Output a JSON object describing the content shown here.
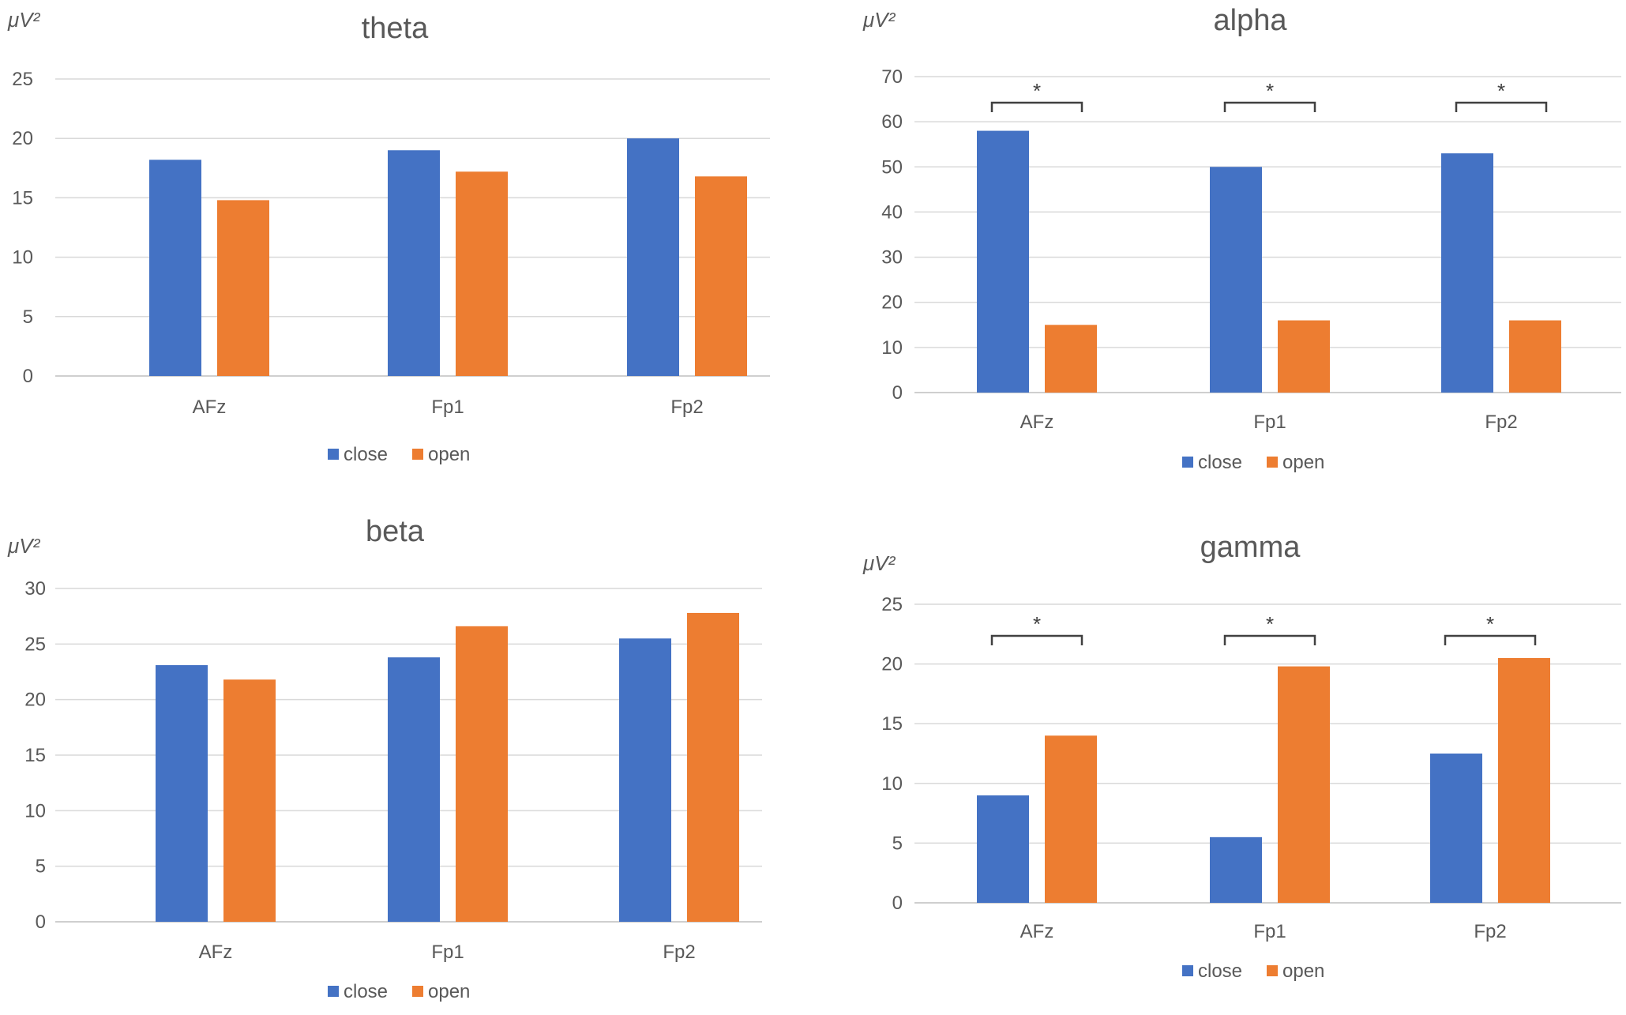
{
  "chart_data": [
    {
      "type": "bar",
      "title": "theta",
      "ylabel": "μV²",
      "ylim": [
        0,
        25
      ],
      "yticks": [
        "0",
        "5",
        "10",
        "15",
        "20",
        "25"
      ],
      "categories": [
        "AFz",
        "Fp1",
        "Fp2"
      ],
      "series": [
        {
          "name": "close",
          "values": [
            18.2,
            19.0,
            20.0
          ]
        },
        {
          "name": "open",
          "values": [
            14.8,
            17.2,
            16.8
          ]
        }
      ],
      "significance": [],
      "legend": "bottom",
      "grid": true
    },
    {
      "type": "bar",
      "title": "alpha",
      "ylabel": "μV²",
      "ylim": [
        0,
        70
      ],
      "yticks": [
        "0",
        "10",
        "20",
        "30",
        "40",
        "50",
        "60",
        "70"
      ],
      "categories": [
        "AFz",
        "Fp1",
        "Fp2"
      ],
      "series": [
        {
          "name": "close",
          "values": [
            58,
            50,
            53
          ]
        },
        {
          "name": "open",
          "values": [
            15,
            16,
            16
          ]
        }
      ],
      "significance": [
        "*",
        "*",
        "*"
      ],
      "legend": "bottom",
      "grid": true
    },
    {
      "type": "bar",
      "title": "beta",
      "ylabel": "μV²",
      "ylim": [
        0,
        30
      ],
      "yticks": [
        "0",
        "5",
        "10",
        "15",
        "20",
        "25",
        "30"
      ],
      "categories": [
        "AFz",
        "Fp1",
        "Fp2"
      ],
      "series": [
        {
          "name": "close",
          "values": [
            23.1,
            23.8,
            25.5
          ]
        },
        {
          "name": "open",
          "values": [
            21.8,
            26.6,
            27.8
          ]
        }
      ],
      "significance": [],
      "legend": "bottom",
      "grid": true
    },
    {
      "type": "bar",
      "title": "gamma",
      "ylabel": "μV²",
      "ylim": [
        0,
        25
      ],
      "yticks": [
        "0",
        "5",
        "10",
        "15",
        "20",
        "25"
      ],
      "categories": [
        "AFz",
        "Fp1",
        "Fp2"
      ],
      "series": [
        {
          "name": "close",
          "values": [
            9.0,
            5.5,
            12.5
          ]
        },
        {
          "name": "open",
          "values": [
            14.0,
            19.8,
            20.5
          ]
        }
      ],
      "significance": [
        "*",
        "*",
        "*"
      ],
      "legend": "bottom",
      "grid": true
    }
  ],
  "colors": {
    "close": "#4472c4",
    "open": "#ed7d31"
  }
}
